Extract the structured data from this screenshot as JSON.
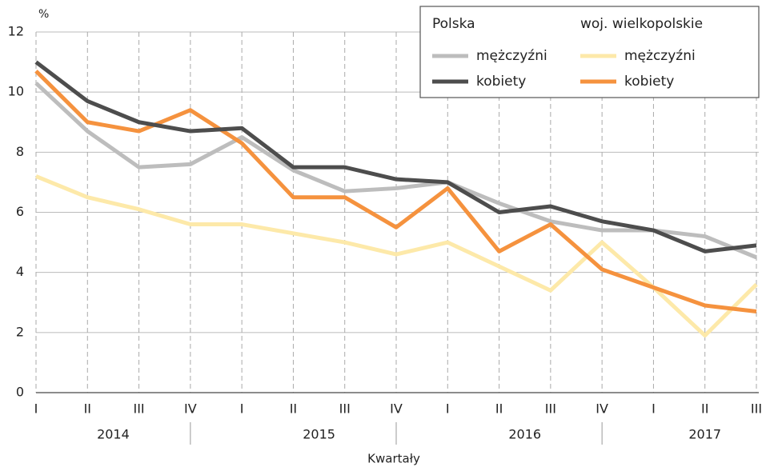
{
  "chart_data": {
    "type": "line",
    "y_label": "%",
    "x_label": "Kwartały",
    "categories": [
      "I",
      "II",
      "III",
      "IV",
      "I",
      "II",
      "III",
      "IV",
      "I",
      "II",
      "III",
      "IV",
      "I",
      "II",
      "III"
    ],
    "years": [
      "2014",
      "2015",
      "2016",
      "2017"
    ],
    "legend_groups": [
      "Polska",
      "woj. wielkopolskie"
    ],
    "series": [
      {
        "name": "mężczyźni",
        "color": "#bdbdbd",
        "values": [
          10.3,
          8.7,
          7.5,
          7.6,
          8.5,
          7.4,
          6.7,
          6.8,
          7.0,
          6.3,
          5.7,
          5.4,
          5.4,
          5.2,
          4.5
        ]
      },
      {
        "name": "kobiety",
        "color": "#4d4d4d",
        "values": [
          11.0,
          9.7,
          9.0,
          8.7,
          8.8,
          7.5,
          7.5,
          7.1,
          7.0,
          6.0,
          6.2,
          5.7,
          5.4,
          4.7,
          4.9
        ]
      },
      {
        "name": "mężczyźni",
        "color": "#fde9a9",
        "values": [
          7.2,
          6.5,
          6.1,
          5.6,
          5.6,
          5.3,
          5.0,
          4.6,
          5.0,
          4.2,
          3.4,
          5.0,
          3.5,
          1.9,
          3.6
        ]
      },
      {
        "name": "kobiety",
        "color": "#f5923e",
        "values": [
          10.7,
          9.0,
          8.7,
          9.4,
          8.3,
          6.5,
          6.5,
          5.5,
          6.8,
          4.7,
          5.6,
          4.1,
          3.5,
          2.9,
          2.7
        ]
      }
    ],
    "ylim": [
      0,
      12
    ],
    "yticks": [
      0,
      2,
      4,
      6,
      8,
      10,
      12
    ],
    "grid": true
  }
}
